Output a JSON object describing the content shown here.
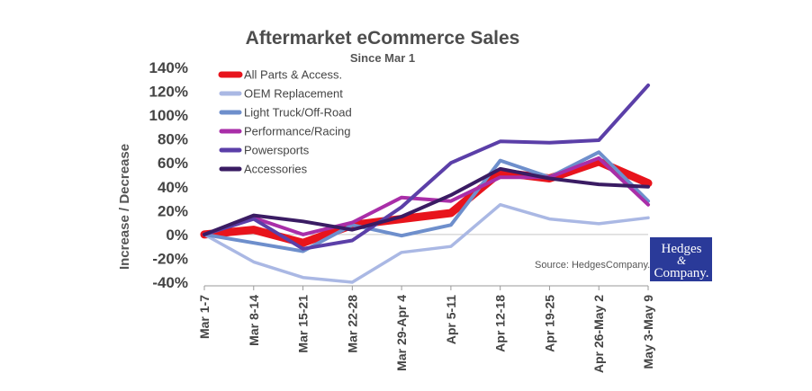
{
  "chart_data": {
    "type": "line",
    "title": "Aftermarket eCommerce Sales",
    "subtitle": "Since Mar 1",
    "xlabel": "",
    "ylabel": "Increase / Decrease",
    "categories": [
      "Mar 1-7",
      "Mar 8-14",
      "Mar 15-21",
      "Mar 22-28",
      "Mar 29-Apr 4",
      "Apr 5-11",
      "Apr 12-18",
      "Apr 19-25",
      "Apr 26-May 2",
      "May 3-May 9"
    ],
    "ylim": [
      -40,
      140
    ],
    "yticks": [
      -40,
      -20,
      0,
      20,
      40,
      60,
      80,
      100,
      120,
      140
    ],
    "ytick_labels": [
      "-40%",
      "-20%",
      "0%",
      "20%",
      "40%",
      "60%",
      "80%",
      "100%",
      "120%",
      "140%"
    ],
    "grid": false,
    "legend_position": "top-left",
    "series": [
      {
        "name": "All Parts & Access.",
        "color": "#e8141c",
        "width": 9,
        "values": [
          0,
          4,
          -7,
          8,
          13,
          18,
          52,
          47,
          61,
          43
        ]
      },
      {
        "name": "OEM Replacement",
        "color": "#aab8e4",
        "width": 3.5,
        "values": [
          0,
          -23,
          -36,
          -40,
          -15,
          -10,
          25,
          13,
          9,
          14
        ]
      },
      {
        "name": "Light Truck/Off-Road",
        "color": "#6e8fcc",
        "width": 4,
        "values": [
          0,
          -7,
          -14,
          8,
          -1,
          8,
          62,
          48,
          69,
          28
        ]
      },
      {
        "name": "Performance/Racing",
        "color": "#a92ea8",
        "width": 4,
        "values": [
          0,
          14,
          0,
          10,
          31,
          28,
          48,
          48,
          64,
          25
        ]
      },
      {
        "name": "Powersports",
        "color": "#5b3fa8",
        "width": 4,
        "values": [
          0,
          13,
          -12,
          -5,
          23,
          60,
          78,
          77,
          79,
          125
        ]
      },
      {
        "name": "Accessories",
        "color": "#3a1c63",
        "width": 4,
        "values": [
          0,
          16,
          11,
          4,
          15,
          33,
          55,
          47,
          42,
          40
        ]
      }
    ],
    "source": "Source: HedgesCompany.com",
    "logo": {
      "line1": "Hedges",
      "line2": "&",
      "line3": "Company."
    }
  }
}
